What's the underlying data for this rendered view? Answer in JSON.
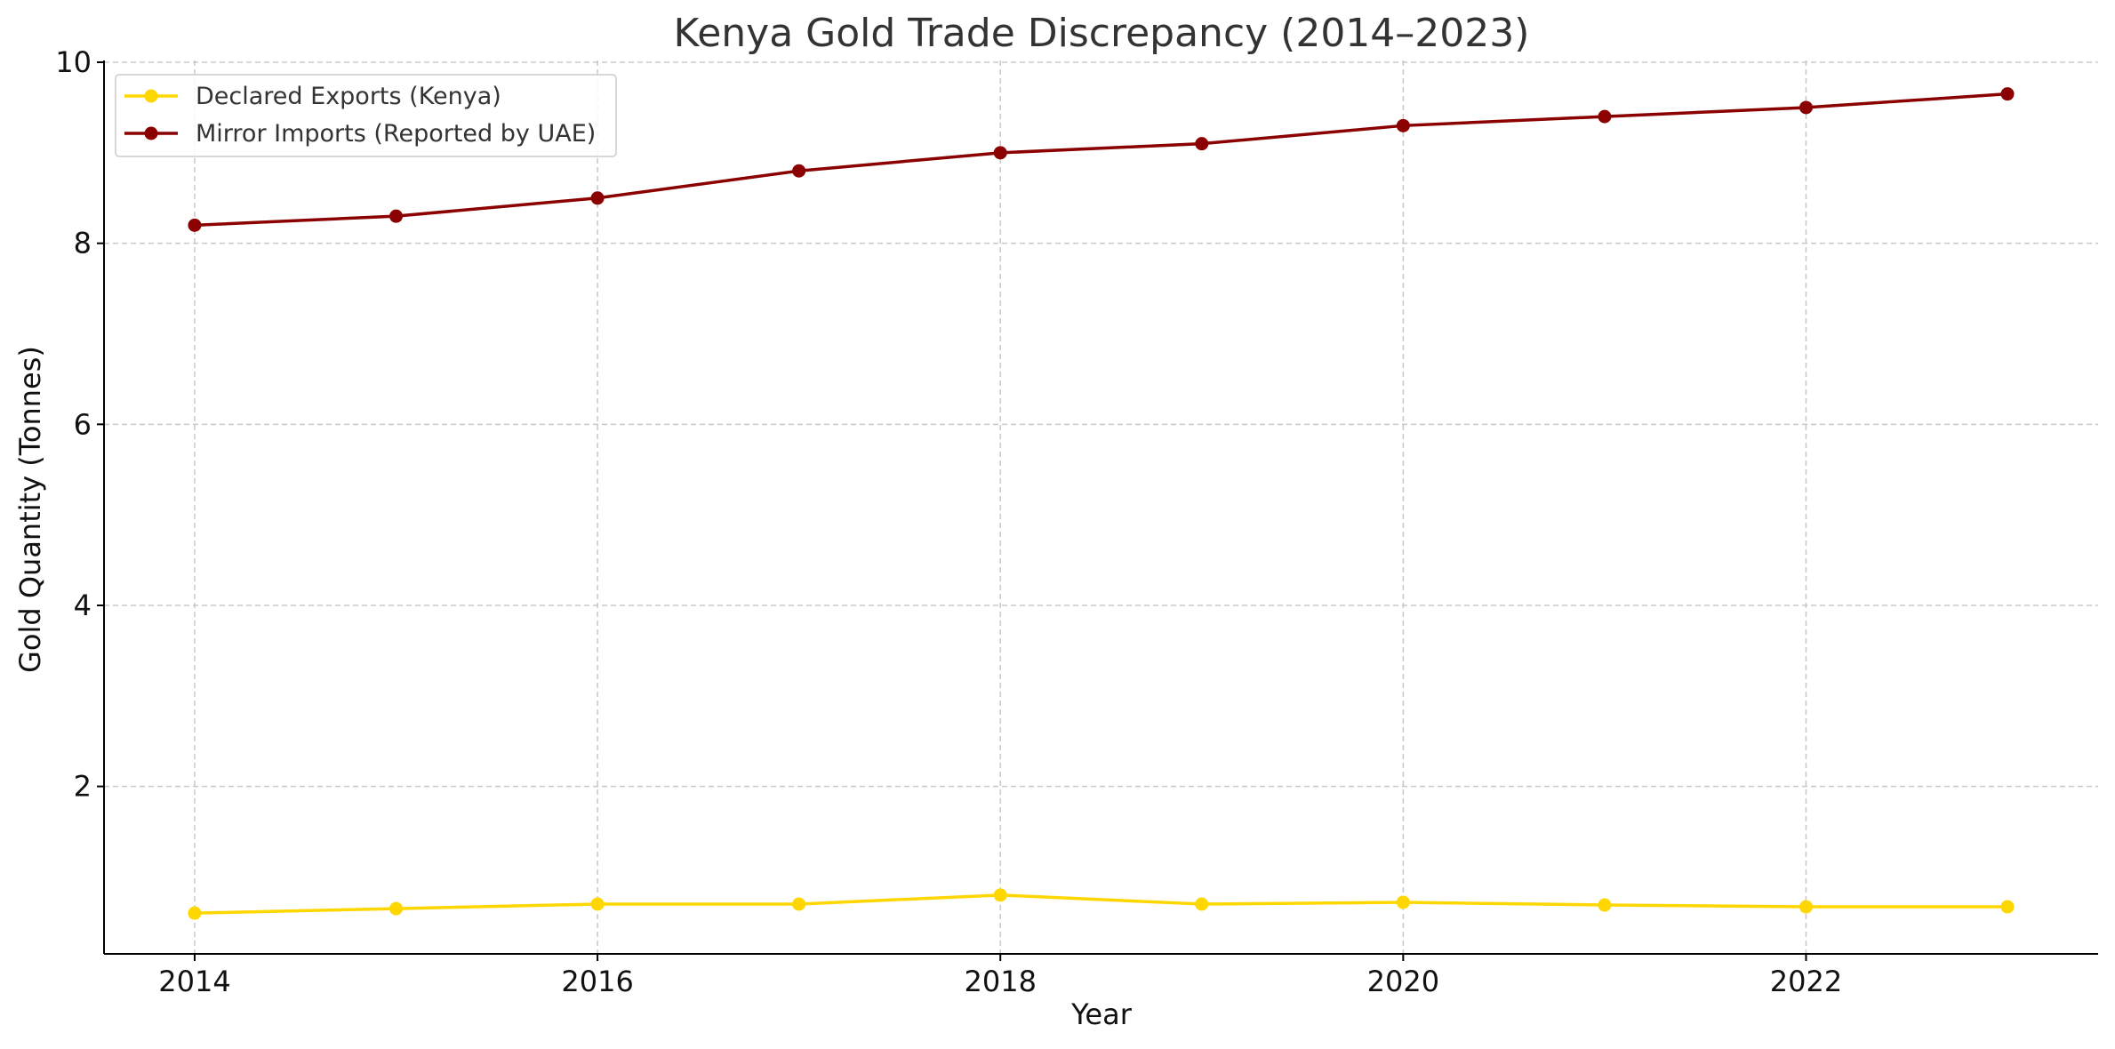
{
  "chart_data": {
    "type": "line",
    "title": "Kenya Gold Trade Discrepancy (2014–2023)",
    "xlabel": "Year",
    "ylabel": "Gold Quantity (Tonnes)",
    "x": [
      2014,
      2015,
      2016,
      2017,
      2018,
      2019,
      2020,
      2021,
      2022,
      2023
    ],
    "xlim": [
      2013.55,
      2023.45
    ],
    "ylim": [
      0.15,
      10.02
    ],
    "xticks": [
      2014,
      2016,
      2018,
      2020,
      2022
    ],
    "yticks": [
      2,
      4,
      6,
      8,
      10
    ],
    "grid": true,
    "legend_position": "top-left",
    "series": [
      {
        "name": "Declared Exports (Kenya)",
        "color": "#FFD700",
        "values": [
          0.6,
          0.65,
          0.7,
          0.7,
          0.8,
          0.7,
          0.72,
          0.69,
          0.67,
          0.67
        ]
      },
      {
        "name": "Mirror Imports (Reported by UAE)",
        "color": "#8B0000",
        "values": [
          8.2,
          8.3,
          8.5,
          8.8,
          9.0,
          9.1,
          9.3,
          9.4,
          9.5,
          9.65
        ]
      }
    ]
  }
}
